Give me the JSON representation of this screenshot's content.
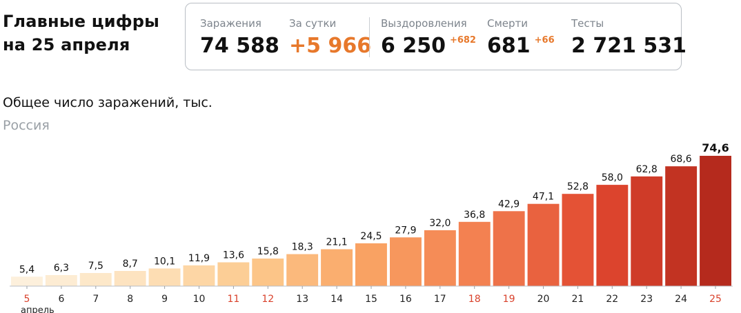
{
  "headline": {
    "line1": "Главные цифры",
    "line2": "на 25 апреля"
  },
  "stats": {
    "infections": {
      "label": "Заражения",
      "value": "74 588"
    },
    "daily": {
      "label": "За сутки",
      "value": "+5 966"
    },
    "recovered": {
      "label": "Выздоровления",
      "value": "6 250",
      "delta": "+682"
    },
    "deaths": {
      "label": "Смерти",
      "value": "681",
      "delta": "+66"
    },
    "tests": {
      "label": "Тесты",
      "value": "2 721 531"
    }
  },
  "colors": {
    "accent": "#e7782b",
    "weekend_label": "#d9412b",
    "weekday_label": "#222222",
    "bar_gradient": [
      "#fdf0dc",
      "#fde2bd",
      "#fcc98c",
      "#f9a263",
      "#f27d4f",
      "#e0472f",
      "#b52a1d"
    ]
  },
  "chart_data": {
    "type": "bar",
    "title": "Общее число заражений, тыс.",
    "subtitle": "Россия",
    "month_label": "апрель",
    "categories": [
      "5",
      "6",
      "7",
      "8",
      "9",
      "10",
      "11",
      "12",
      "13",
      "14",
      "15",
      "16",
      "17",
      "18",
      "19",
      "20",
      "21",
      "22",
      "23",
      "24",
      "25"
    ],
    "values": [
      5.4,
      6.3,
      7.5,
      8.7,
      10.1,
      11.9,
      13.6,
      15.8,
      18.3,
      21.1,
      24.5,
      27.9,
      32.0,
      36.8,
      42.9,
      47.1,
      52.8,
      58.0,
      62.8,
      68.6,
      74.6
    ],
    "value_labels": [
      "5,4",
      "6,3",
      "7,5",
      "8,7",
      "10,1",
      "11,9",
      "13,6",
      "15,8",
      "18,3",
      "21,1",
      "24,5",
      "27,9",
      "32,0",
      "36,8",
      "42,9",
      "47,1",
      "52,8",
      "58,0",
      "62,8",
      "68,6",
      "74,6"
    ],
    "highlighted_categories": [
      "5",
      "11",
      "12",
      "18",
      "19",
      "25"
    ],
    "emphasized_last": true,
    "ylim": [
      0,
      74.6
    ],
    "grid": false,
    "legend": false
  }
}
